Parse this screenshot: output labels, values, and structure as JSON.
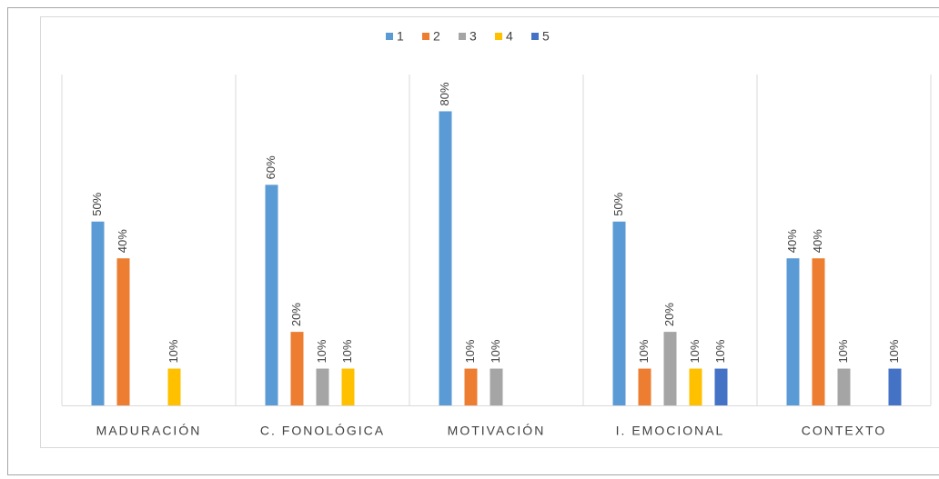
{
  "chart_data": {
    "type": "bar",
    "categories": [
      "MADURACIÓN",
      "C. FONOLÓGICA",
      "MOTIVACIÓN",
      "I. EMOCIONAL",
      "CONTEXTO"
    ],
    "series": [
      {
        "name": "1",
        "color": "#5b9bd5",
        "values": [
          50,
          60,
          80,
          50,
          40
        ],
        "value_labels": [
          "50%",
          "60%",
          "80%",
          "50%",
          "40%"
        ]
      },
      {
        "name": "2",
        "color": "#ed7d31",
        "values": [
          40,
          20,
          10,
          10,
          40
        ],
        "value_labels": [
          "40%",
          "20%",
          "10%",
          "10%",
          "40%"
        ]
      },
      {
        "name": "3",
        "color": "#a5a5a5",
        "values": [
          null,
          10,
          10,
          20,
          10
        ],
        "value_labels": [
          null,
          "10%",
          "10%",
          "20%",
          "10%"
        ]
      },
      {
        "name": "4",
        "color": "#ffc000",
        "values": [
          10,
          10,
          null,
          10,
          null
        ],
        "value_labels": [
          "10%",
          "10%",
          null,
          "10%",
          null
        ]
      },
      {
        "name": "5",
        "color": "#4472c4",
        "values": [
          null,
          null,
          null,
          10,
          10
        ],
        "value_labels": [
          null,
          null,
          null,
          "10%",
          "10%"
        ]
      }
    ],
    "ylim": [
      0,
      90
    ],
    "legend": "top"
  }
}
